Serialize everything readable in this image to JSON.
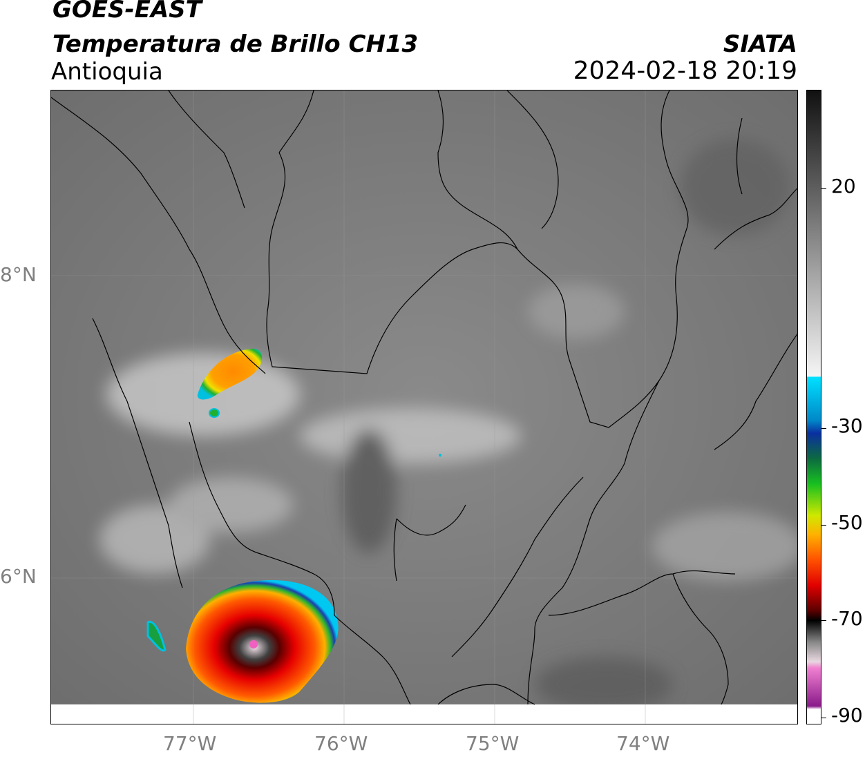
{
  "header": {
    "satellite": "GOES-EAST",
    "product": "Temperatura de Brillo CH13",
    "region": "Antioquia",
    "brand": "SIATA",
    "timestamp": "2024-02-18 20:19"
  },
  "map": {
    "lat_labels": [
      "8°N",
      "6°N"
    ],
    "lon_labels": [
      "77°W",
      "76°W",
      "75°W",
      "74°W"
    ],
    "extent": {
      "lon": [
        -77.95,
        -73.05
      ],
      "lat": [
        5.2,
        9.2
      ]
    }
  },
  "colorbar": {
    "tick_labels": [
      "20",
      "-30",
      "-50",
      "-70",
      "-90"
    ],
    "colors": {
      "warm_gray_top": "#1a1a1a",
      "light": "#f5f5f5",
      "cyan": "#00d8ff",
      "blue": "#0a2fa0",
      "green": "#12b22c",
      "yellow": "#f2e000",
      "orange": "#ff9a00",
      "red": "#e60000",
      "dark_red": "#5a0000",
      "black": "#000000",
      "pink": "#f060c0",
      "purple": "#8a1a8a"
    }
  }
}
